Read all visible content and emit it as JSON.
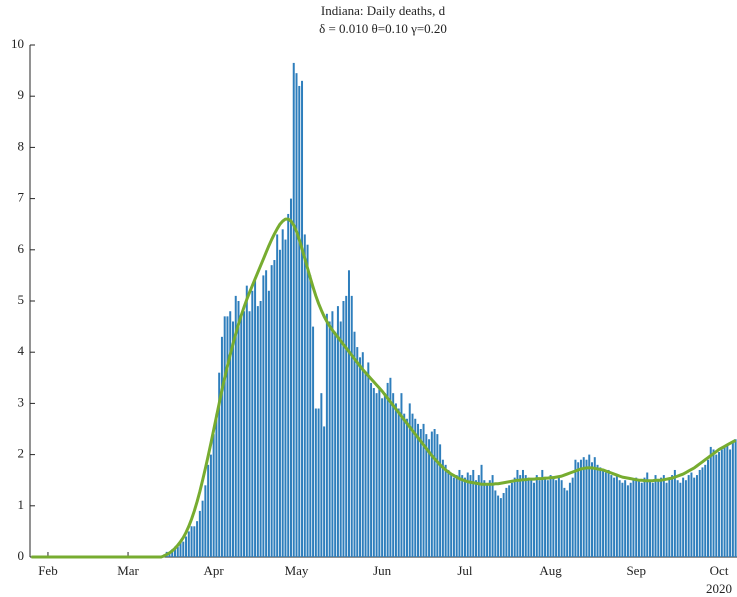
{
  "chart_data": {
    "type": "bar",
    "title": "Indiana: Daily deaths, d",
    "subtitle": "δ = 0.010  θ=0.10  γ=0.20",
    "year_label": "2020",
    "ylim": [
      0,
      10
    ],
    "yticks": [
      0,
      1,
      2,
      3,
      4,
      5,
      6,
      7,
      8,
      9,
      10
    ],
    "categories": [
      null,
      null,
      null,
      null,
      null,
      null,
      "Feb",
      null,
      null,
      null,
      null,
      null,
      null,
      null,
      null,
      null,
      null,
      null,
      null,
      null,
      null,
      null,
      null,
      null,
      null,
      null,
      null,
      null,
      null,
      null,
      null,
      null,
      null,
      null,
      null,
      "Mar",
      null,
      null,
      null,
      null,
      null,
      null,
      null,
      null,
      null,
      null,
      null,
      null,
      null,
      null,
      null,
      null,
      null,
      null,
      null,
      null,
      null,
      null,
      null,
      null,
      null,
      null,
      null,
      null,
      null,
      null,
      "Apr",
      null,
      null,
      null,
      null,
      null,
      null,
      null,
      null,
      null,
      null,
      null,
      null,
      null,
      null,
      null,
      null,
      null,
      null,
      null,
      null,
      null,
      null,
      null,
      null,
      null,
      null,
      null,
      null,
      null,
      "May",
      null,
      null,
      null,
      null,
      null,
      null,
      null,
      null,
      null,
      null,
      null,
      null,
      null,
      null,
      null,
      null,
      null,
      null,
      null,
      null,
      null,
      null,
      null,
      null,
      null,
      null,
      null,
      null,
      null,
      null,
      "Jun",
      null,
      null,
      null,
      null,
      null,
      null,
      null,
      null,
      null,
      null,
      null,
      null,
      null,
      null,
      null,
      null,
      null,
      null,
      null,
      null,
      null,
      null,
      null,
      null,
      null,
      null,
      null,
      null,
      null,
      "Jul",
      null,
      null,
      null,
      null,
      null,
      null,
      null,
      null,
      null,
      null,
      null,
      null,
      null,
      null,
      null,
      null,
      null,
      null,
      null,
      null,
      null,
      null,
      null,
      null,
      null,
      null,
      null,
      null,
      null,
      null,
      "Aug",
      null,
      null,
      null,
      null,
      null,
      null,
      null,
      null,
      null,
      null,
      null,
      null,
      null,
      null,
      null,
      null,
      null,
      null,
      null,
      null,
      null,
      null,
      null,
      null,
      null,
      null,
      null,
      null,
      null,
      null,
      "Sep",
      null,
      null,
      null,
      null,
      null,
      null,
      null,
      null,
      null,
      null,
      null,
      null,
      null,
      null,
      null,
      null,
      null,
      null,
      null,
      null,
      null,
      null,
      null,
      null,
      null,
      null,
      null,
      null,
      null,
      "Oct",
      null,
      null,
      null,
      null,
      null,
      null
    ],
    "series": [
      {
        "type": "bar",
        "color": "#2e7ebc",
        "values": [
          0,
          0,
          0,
          0,
          0,
          0,
          0,
          0,
          0,
          0,
          0,
          0,
          0,
          0,
          0,
          0,
          0,
          0,
          0,
          0,
          0,
          0,
          0,
          0,
          0,
          0,
          0,
          0,
          0,
          0,
          0,
          0,
          0,
          0,
          0,
          0,
          0,
          0,
          0,
          0,
          0,
          0,
          0,
          0,
          0,
          0,
          0,
          0,
          0.05,
          0.1,
          0.1,
          0.15,
          0.2,
          0.2,
          0.3,
          0.3,
          0.4,
          0.5,
          0.6,
          0.6,
          0.7,
          0.9,
          1.1,
          1.4,
          1.8,
          2.0,
          2.4,
          2.8,
          3.6,
          4.3,
          4.7,
          4.7,
          4.8,
          4.6,
          5.1,
          5.0,
          4.7,
          4.8,
          5.3,
          4.8,
          5.2,
          5.4,
          4.9,
          5.0,
          5.5,
          5.6,
          5.2,
          5.7,
          5.8,
          6.3,
          6.0,
          6.4,
          6.2,
          6.7,
          7.0,
          9.65,
          9.45,
          9.2,
          9.3,
          6.3,
          6.1,
          5.5,
          4.5,
          2.9,
          2.9,
          3.2,
          2.55,
          4.75,
          4.6,
          4.8,
          4.4,
          4.9,
          4.6,
          5.0,
          5.1,
          5.6,
          5.1,
          4.4,
          4.1,
          3.9,
          4.0,
          3.6,
          3.8,
          3.4,
          3.3,
          3.2,
          3.3,
          3.1,
          3.2,
          3.4,
          3.5,
          3.2,
          3.0,
          2.9,
          3.2,
          2.8,
          2.7,
          3.0,
          2.8,
          2.7,
          2.6,
          2.5,
          2.6,
          2.4,
          2.3,
          2.45,
          2.5,
          2.4,
          2.2,
          1.9,
          1.8,
          1.7,
          1.6,
          1.55,
          1.6,
          1.7,
          1.6,
          1.55,
          1.65,
          1.6,
          1.7,
          1.5,
          1.6,
          1.8,
          1.5,
          1.4,
          1.5,
          1.6,
          1.3,
          1.2,
          1.15,
          1.25,
          1.35,
          1.4,
          1.45,
          1.55,
          1.7,
          1.6,
          1.7,
          1.6,
          1.55,
          1.5,
          1.45,
          1.6,
          1.5,
          1.7,
          1.55,
          1.5,
          1.6,
          1.55,
          1.5,
          1.55,
          1.5,
          1.35,
          1.3,
          1.45,
          1.55,
          1.9,
          1.85,
          1.9,
          1.95,
          1.9,
          2.0,
          1.85,
          1.95,
          1.8,
          1.75,
          1.7,
          1.65,
          1.7,
          1.6,
          1.55,
          1.6,
          1.5,
          1.45,
          1.5,
          1.4,
          1.45,
          1.5,
          1.55,
          1.5,
          1.45,
          1.55,
          1.65,
          1.5,
          1.45,
          1.6,
          1.5,
          1.55,
          1.6,
          1.45,
          1.55,
          1.6,
          1.7,
          1.5,
          1.45,
          1.55,
          1.5,
          1.6,
          1.65,
          1.55,
          1.6,
          1.7,
          1.75,
          1.8,
          1.9,
          2.15,
          2.1,
          2.0,
          2.05,
          2.1,
          2.15,
          2.2,
          2.1,
          2.25,
          2.3
        ]
      },
      {
        "type": "line",
        "color": "#77ac30",
        "values": [
          0,
          0,
          0,
          0,
          0,
          0,
          0,
          0,
          0,
          0,
          0,
          0,
          0,
          0,
          0,
          0,
          0,
          0,
          0,
          0,
          0,
          0,
          0,
          0,
          0,
          0,
          0,
          0,
          0,
          0,
          0,
          0,
          0,
          0,
          0,
          0,
          0,
          0,
          0,
          0,
          0,
          0,
          0,
          0,
          0,
          0,
          0,
          0,
          0.02,
          0.05,
          0.08,
          0.12,
          0.17,
          0.23,
          0.3,
          0.38,
          0.48,
          0.6,
          0.74,
          0.9,
          1.08,
          1.28,
          1.5,
          1.73,
          1.97,
          2.22,
          2.48,
          2.74,
          3.0,
          3.26,
          3.5,
          3.73,
          3.95,
          4.16,
          4.36,
          4.55,
          4.72,
          4.88,
          5.03,
          5.17,
          5.3,
          5.43,
          5.56,
          5.69,
          5.82,
          5.95,
          6.08,
          6.2,
          6.31,
          6.41,
          6.5,
          6.56,
          6.6,
          6.6,
          6.56,
          6.48,
          6.36,
          6.2,
          6.02,
          5.83,
          5.64,
          5.45,
          5.27,
          5.1,
          4.95,
          4.82,
          4.7,
          4.6,
          4.51,
          4.43,
          4.36,
          4.29,
          4.22,
          4.15,
          4.08,
          4.01,
          3.94,
          3.87,
          3.8,
          3.73,
          3.66,
          3.6,
          3.54,
          3.48,
          3.42,
          3.36,
          3.3,
          3.24,
          3.17,
          3.1,
          3.03,
          2.96,
          2.89,
          2.82,
          2.75,
          2.68,
          2.61,
          2.54,
          2.47,
          2.4,
          2.33,
          2.26,
          2.19,
          2.12,
          2.05,
          1.98,
          1.92,
          1.86,
          1.8,
          1.75,
          1.7,
          1.66,
          1.62,
          1.59,
          1.56,
          1.53,
          1.51,
          1.49,
          1.47,
          1.46,
          1.45,
          1.44,
          1.43,
          1.42,
          1.42,
          1.42,
          1.42,
          1.42,
          1.43,
          1.43,
          1.44,
          1.45,
          1.46,
          1.47,
          1.48,
          1.49,
          1.5,
          1.5,
          1.51,
          1.51,
          1.52,
          1.52,
          1.52,
          1.53,
          1.53,
          1.53,
          1.54,
          1.54,
          1.55,
          1.55,
          1.56,
          1.57,
          1.58,
          1.6,
          1.62,
          1.64,
          1.66,
          1.68,
          1.7,
          1.72,
          1.73,
          1.74,
          1.74,
          1.74,
          1.73,
          1.72,
          1.71,
          1.7,
          1.68,
          1.66,
          1.64,
          1.62,
          1.6,
          1.58,
          1.56,
          1.55,
          1.54,
          1.53,
          1.52,
          1.51,
          1.5,
          1.5,
          1.49,
          1.49,
          1.49,
          1.49,
          1.5,
          1.5,
          1.5,
          1.51,
          1.52,
          1.53,
          1.54,
          1.56,
          1.58,
          1.6,
          1.62,
          1.65,
          1.68,
          1.71,
          1.74,
          1.78,
          1.82,
          1.86,
          1.9,
          1.94,
          1.98,
          2.02,
          2.06,
          2.1,
          2.13,
          2.16,
          2.19,
          2.22,
          2.25,
          2.28
        ]
      }
    ]
  }
}
